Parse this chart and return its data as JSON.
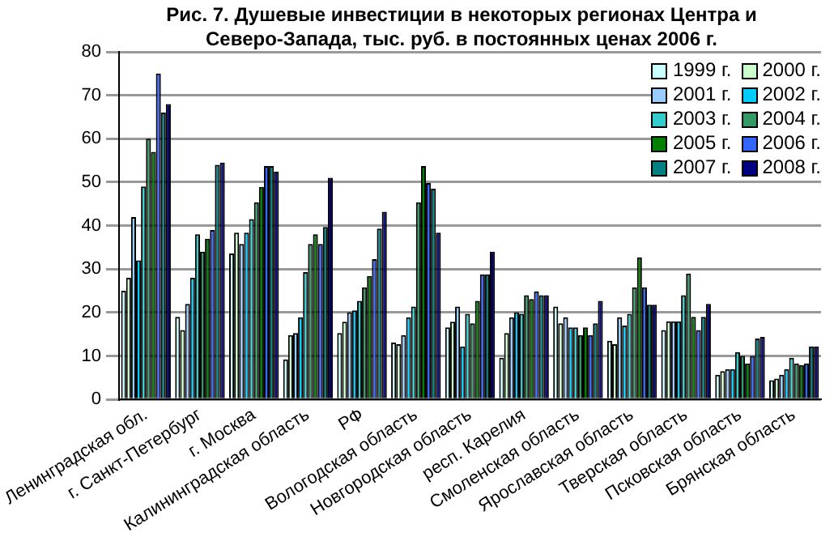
{
  "chart_data": {
    "type": "bar",
    "title": "Рис. 7. Душевые инвестиции в некоторых регионах Центра и Северо-Запада, тыс. руб. в постоянных ценах 2006 г.",
    "categories": [
      "Ленинградская обл.",
      "г. Санкт-Петербург",
      "г. Москва",
      "Калининградская область",
      "РФ",
      "Вологодская область",
      "Новгородская область",
      "респ. Карелия",
      "Смоленская область",
      "Ярославская область",
      "Тверская область",
      "Псковская область",
      "Брянская область"
    ],
    "series": [
      {
        "name": "1999 г.",
        "color": "#ccffff",
        "values": [
          25,
          19,
          33.6,
          9.2,
          15.3,
          13.1,
          16.6,
          9.6,
          21.4,
          13.5,
          16,
          5.7,
          4.4
        ]
      },
      {
        "name": "2000 г.",
        "color": "#ccffcc",
        "values": [
          28,
          16,
          38.4,
          14.8,
          17.9,
          12.7,
          17.9,
          15.3,
          17.5,
          12.7,
          18,
          6.5,
          4.8
        ]
      },
      {
        "name": "2001 г.",
        "color": "#99ccff",
        "values": [
          42,
          22,
          35.8,
          15.3,
          20.1,
          14.8,
          21.4,
          18.9,
          18.9,
          18.9,
          18,
          7,
          5.7
        ]
      },
      {
        "name": "2002 г.",
        "color": "#00ccff",
        "values": [
          32,
          28,
          38.4,
          18.9,
          20.5,
          18.9,
          12.2,
          20.1,
          16.6,
          17,
          18,
          7,
          7
        ]
      },
      {
        "name": "2003 г.",
        "color": "#33cccc",
        "values": [
          49,
          38,
          41.5,
          29.3,
          22.7,
          21.4,
          19.7,
          19.7,
          16.6,
          19.7,
          24,
          10.9,
          9.6
        ]
      },
      {
        "name": "2004 г.",
        "color": "#339966",
        "values": [
          60,
          34,
          45.4,
          35.8,
          25.8,
          45.4,
          17.5,
          24,
          14.8,
          25.8,
          29,
          10,
          8.3
        ]
      },
      {
        "name": "2005 г.",
        "color": "#008000",
        "values": [
          57,
          37,
          48.9,
          38,
          28.4,
          53.7,
          22.7,
          23.1,
          16.6,
          32.7,
          19,
          8.3,
          7.9
        ]
      },
      {
        "name": "2006 г.",
        "color": "#3366ff",
        "values": [
          75,
          39,
          53.7,
          35.8,
          32.3,
          49.8,
          28.8,
          24.9,
          14.8,
          25.8,
          16,
          10,
          8.3
        ]
      },
      {
        "name": "2007 г.",
        "color": "#008080",
        "values": [
          66,
          54,
          53.7,
          39.7,
          39.3,
          48.5,
          28.8,
          24,
          17.5,
          21.8,
          19,
          14,
          12.2
        ]
      },
      {
        "name": "2008 г.",
        "color": "#000080",
        "values": [
          68,
          54.5,
          52.4,
          51,
          43.2,
          38.4,
          34,
          24,
          22.7,
          21.8,
          22,
          14.4,
          12.2
        ]
      }
    ],
    "ylim": [
      0,
      80
    ],
    "yticks": [
      0,
      10,
      20,
      30,
      40,
      50,
      60,
      70,
      80
    ],
    "grid": "y",
    "legend": "top right"
  }
}
